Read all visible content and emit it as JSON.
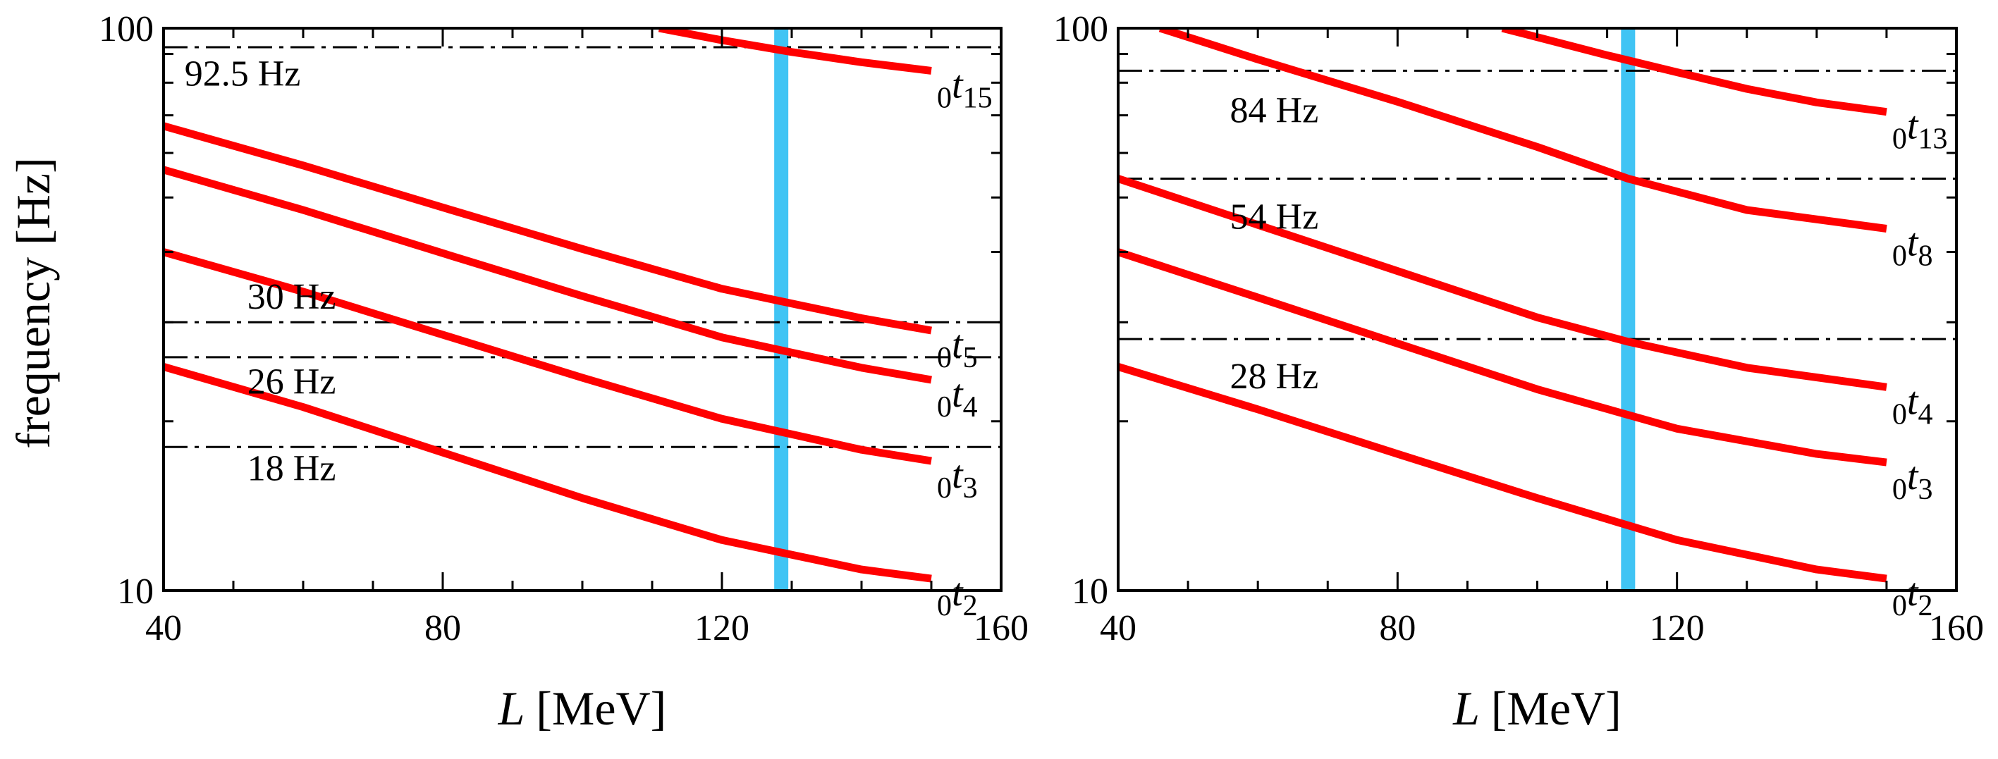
{
  "chart_data": [
    {
      "type": "line",
      "yscale": "log",
      "xlim": [
        40,
        160
      ],
      "ylim": [
        10,
        100
      ],
      "x_ticks": [
        40,
        80,
        120,
        160
      ],
      "y_ticks": [
        10,
        100
      ],
      "xlabel_var": "L",
      "xlabel_unit": "[MeV]",
      "ylabel": "frequency [Hz]",
      "vband": {
        "x": 128.5,
        "color": "#40c4f4"
      },
      "hlines": [
        {
          "y": 92.5,
          "label": "92.5 Hz",
          "label_x": 43,
          "label_y": 79
        },
        {
          "y": 30,
          "label": "30 Hz",
          "label_x": 52,
          "label_y": 31.7
        },
        {
          "y": 26,
          "label": "26 Hz",
          "label_x": 52,
          "label_y": 22.4
        },
        {
          "y": 18,
          "label": "18 Hz",
          "label_x": 52,
          "label_y": 15.7
        }
      ],
      "series": [
        {
          "name": "0t15",
          "prefix": "0",
          "symbol": "t",
          "subscript": "15",
          "color": "#ff0000",
          "x": [
            111,
            120,
            130,
            140,
            150
          ],
          "y": [
            100,
            95.2,
            90.7,
            87.0,
            84.0
          ]
        },
        {
          "name": "0t5",
          "prefix": "0",
          "symbol": "t",
          "subscript": "5",
          "color": "#ff0000",
          "x": [
            40,
            60,
            80,
            100,
            120,
            140,
            150
          ],
          "y": [
            67.0,
            57.0,
            48.0,
            40.5,
            34.4,
            30.5,
            29.0
          ]
        },
        {
          "name": "0t4",
          "prefix": "0",
          "symbol": "t",
          "subscript": "4",
          "color": "#ff0000",
          "x": [
            40,
            60,
            80,
            100,
            120,
            140,
            150
          ],
          "y": [
            56.0,
            47.5,
            39.8,
            33.4,
            28.2,
            24.9,
            23.7
          ]
        },
        {
          "name": "0t3",
          "prefix": "0",
          "symbol": "t",
          "subscript": "3",
          "color": "#ff0000",
          "x": [
            40,
            60,
            80,
            100,
            120,
            140,
            150
          ],
          "y": [
            40.0,
            34.0,
            28.5,
            23.9,
            20.2,
            17.8,
            17.0
          ]
        },
        {
          "name": "0t2",
          "prefix": "0",
          "symbol": "t",
          "subscript": "2",
          "color": "#ff0000",
          "x": [
            40,
            60,
            80,
            100,
            120,
            140,
            150
          ],
          "y": [
            25.0,
            21.2,
            17.6,
            14.6,
            12.3,
            10.9,
            10.5
          ]
        }
      ]
    },
    {
      "type": "line",
      "yscale": "log",
      "xlim": [
        40,
        160
      ],
      "ylim": [
        10,
        100
      ],
      "x_ticks": [
        40,
        80,
        120,
        160
      ],
      "y_ticks": [
        10,
        100
      ],
      "xlabel_var": "L",
      "xlabel_unit": "[MeV]",
      "ylabel": "",
      "vband": {
        "x": 113,
        "color": "#40c4f4"
      },
      "hlines": [
        {
          "y": 84,
          "label": "84 Hz",
          "label_x": 56,
          "label_y": 68
        },
        {
          "y": 54,
          "label": "54 Hz",
          "label_x": 56,
          "label_y": 44
        },
        {
          "y": 28,
          "label": "28 Hz",
          "label_x": 56,
          "label_y": 22.9
        }
      ],
      "series": [
        {
          "name": "0t13",
          "prefix": "0",
          "symbol": "t",
          "subscript": "13",
          "color": "#ff0000",
          "x": [
            95,
            110,
            120,
            130,
            140,
            150
          ],
          "y": [
            100,
            89.5,
            83.5,
            78.0,
            73.8,
            71.0
          ]
        },
        {
          "name": "0t8",
          "prefix": "0",
          "symbol": "t",
          "subscript": "8",
          "color": "#ff0000",
          "x": [
            46,
            60,
            80,
            100,
            113,
            130,
            150
          ],
          "y": [
            100,
            88.0,
            74.0,
            61.5,
            54.0,
            47.5,
            44.0
          ]
        },
        {
          "name": "0t4",
          "prefix": "0",
          "symbol": "t",
          "subscript": "4",
          "color": "#ff0000",
          "x": [
            40,
            60,
            80,
            100,
            113,
            130,
            150
          ],
          "y": [
            54.0,
            44.7,
            37.0,
            30.6,
            27.7,
            24.9,
            23.0
          ]
        },
        {
          "name": "0t3",
          "prefix": "0",
          "symbol": "t",
          "subscript": "3",
          "color": "#ff0000",
          "x": [
            40,
            60,
            80,
            100,
            120,
            140,
            150
          ],
          "y": [
            40.0,
            33.2,
            27.5,
            22.8,
            19.4,
            17.5,
            16.9
          ]
        },
        {
          "name": "0t2",
          "prefix": "0",
          "symbol": "t",
          "subscript": "2",
          "color": "#ff0000",
          "x": [
            40,
            60,
            80,
            100,
            120,
            140,
            150
          ],
          "y": [
            25.0,
            21.0,
            17.5,
            14.6,
            12.3,
            10.9,
            10.5
          ]
        }
      ]
    }
  ]
}
